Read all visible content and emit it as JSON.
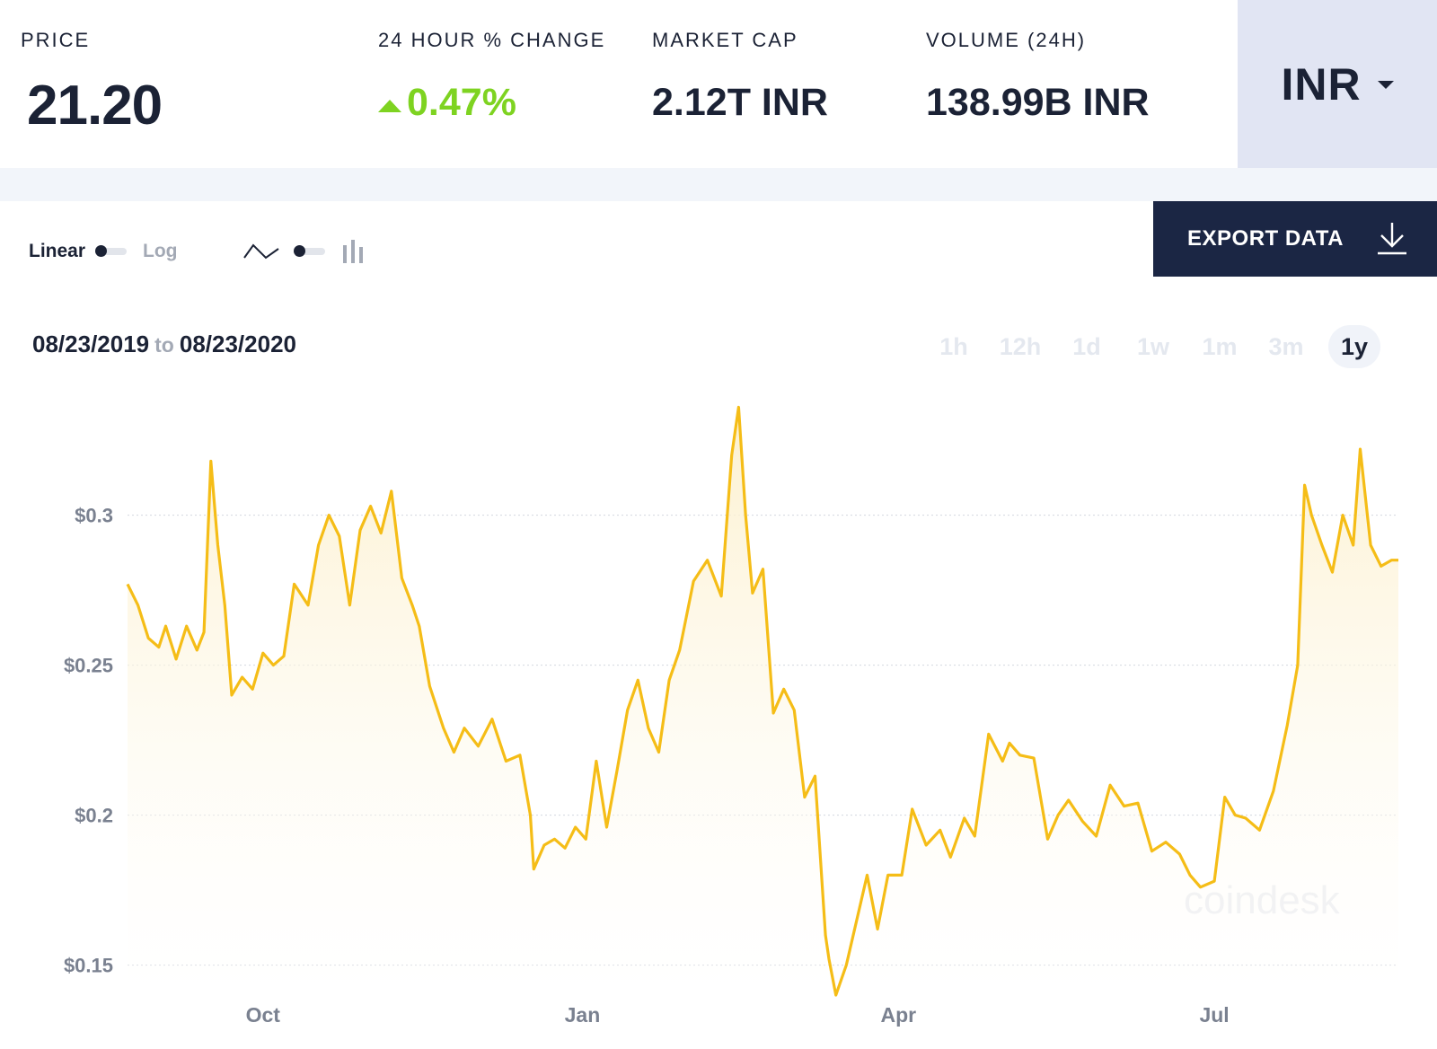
{
  "stats": {
    "price_label": "PRICE",
    "price_value": "21.20",
    "change_label": "24 HOUR % CHANGE",
    "change_value": "0.47%",
    "market_cap_label": "MARKET CAP",
    "market_cap_value": "2.12T INR",
    "volume_label": "VOLUME (24H)",
    "volume_value": "138.99B INR"
  },
  "currency": "INR",
  "toggles": {
    "linear": "Linear",
    "log": "Log"
  },
  "export": {
    "label": "EXPORT DATA"
  },
  "date_range": {
    "start": "08/23/2019",
    "to": "to",
    "end": "08/23/2020"
  },
  "ranges": [
    "1h",
    "12h",
    "1d",
    "1w",
    "1m",
    "3m",
    "1y"
  ],
  "active_range": "1y",
  "colors": {
    "accent": "#f5bd17",
    "positive": "#7ed321",
    "navy": "#1b2644"
  },
  "icons": [
    "line-chart-icon",
    "bar-chart-icon",
    "download-icon",
    "caret-down-icon"
  ],
  "chart_data": {
    "type": "area",
    "title": "",
    "xlabel": "",
    "ylabel": "",
    "y_ticks": [
      "$0.15",
      "$0.2",
      "$0.25",
      "$0.3"
    ],
    "y_tick_values": [
      0.15,
      0.2,
      0.25,
      0.3
    ],
    "x_ticks": [
      "Oct",
      "Jan",
      "Apr",
      "Jul"
    ],
    "x_tick_dates": [
      "2019-10-01",
      "2020-01-01",
      "2020-04-01",
      "2020-07-01"
    ],
    "ylim": [
      0.14,
      0.34
    ],
    "x_range": [
      "2019-08-23",
      "2020-08-23"
    ],
    "grid": true,
    "watermark": "coindesk",
    "series": [
      {
        "x": [
          "2019-08-23",
          "2019-08-26",
          "2019-08-29",
          "2019-09-01",
          "2019-09-03",
          "2019-09-06",
          "2019-09-09",
          "2019-09-12",
          "2019-09-14",
          "2019-09-16",
          "2019-09-18",
          "2019-09-20",
          "2019-09-22",
          "2019-09-25",
          "2019-09-28",
          "2019-10-01",
          "2019-10-04",
          "2019-10-07",
          "2019-10-10",
          "2019-10-14",
          "2019-10-17",
          "2019-10-20",
          "2019-10-23",
          "2019-10-26",
          "2019-10-29",
          "2019-11-01",
          "2019-11-04",
          "2019-11-07",
          "2019-11-10",
          "2019-11-13",
          "2019-11-15",
          "2019-11-18",
          "2019-11-22",
          "2019-11-25",
          "2019-11-28",
          "2019-12-02",
          "2019-12-06",
          "2019-12-10",
          "2019-12-14",
          "2019-12-17",
          "2019-12-18",
          "2019-12-21",
          "2019-12-24",
          "2019-12-27",
          "2019-12-30",
          "2020-01-02",
          "2020-01-05",
          "2020-01-08",
          "2020-01-11",
          "2020-01-14",
          "2020-01-17",
          "2020-01-20",
          "2020-01-23",
          "2020-01-26",
          "2020-01-29",
          "2020-02-02",
          "2020-02-06",
          "2020-02-10",
          "2020-02-13",
          "2020-02-15",
          "2020-02-17",
          "2020-02-19",
          "2020-02-22",
          "2020-02-25",
          "2020-02-28",
          "2020-03-02",
          "2020-03-05",
          "2020-03-08",
          "2020-03-11",
          "2020-03-12",
          "2020-03-14",
          "2020-03-17",
          "2020-03-20",
          "2020-03-23",
          "2020-03-26",
          "2020-03-29",
          "2020-04-02",
          "2020-04-05",
          "2020-04-09",
          "2020-04-13",
          "2020-04-16",
          "2020-04-20",
          "2020-04-23",
          "2020-04-27",
          "2020-05-01",
          "2020-05-03",
          "2020-05-06",
          "2020-05-10",
          "2020-05-14",
          "2020-05-17",
          "2020-05-20",
          "2020-05-24",
          "2020-05-28",
          "2020-06-01",
          "2020-06-05",
          "2020-06-09",
          "2020-06-13",
          "2020-06-17",
          "2020-06-21",
          "2020-06-24",
          "2020-06-27",
          "2020-07-01",
          "2020-07-04",
          "2020-07-07",
          "2020-07-10",
          "2020-07-14",
          "2020-07-18",
          "2020-07-22",
          "2020-07-25",
          "2020-07-27",
          "2020-07-29",
          "2020-08-01",
          "2020-08-04",
          "2020-08-07",
          "2020-08-10",
          "2020-08-12",
          "2020-08-15",
          "2020-08-18",
          "2020-08-21",
          "2020-08-23"
        ],
        "values": [
          0.277,
          0.27,
          0.259,
          0.256,
          0.263,
          0.252,
          0.263,
          0.255,
          0.261,
          0.318,
          0.29,
          0.27,
          0.24,
          0.246,
          0.242,
          0.254,
          0.25,
          0.253,
          0.277,
          0.27,
          0.29,
          0.3,
          0.293,
          0.27,
          0.295,
          0.303,
          0.294,
          0.308,
          0.279,
          0.27,
          0.263,
          0.243,
          0.229,
          0.221,
          0.229,
          0.223,
          0.232,
          0.218,
          0.22,
          0.2,
          0.182,
          0.19,
          0.192,
          0.189,
          0.196,
          0.192,
          0.218,
          0.196,
          0.215,
          0.235,
          0.245,
          0.229,
          0.221,
          0.245,
          0.255,
          0.278,
          0.285,
          0.273,
          0.32,
          0.336,
          0.3,
          0.274,
          0.282,
          0.234,
          0.242,
          0.235,
          0.206,
          0.213,
          0.16,
          0.152,
          0.14,
          0.15,
          0.165,
          0.18,
          0.162,
          0.18,
          0.18,
          0.202,
          0.19,
          0.195,
          0.186,
          0.199,
          0.193,
          0.227,
          0.218,
          0.224,
          0.22,
          0.219,
          0.192,
          0.2,
          0.205,
          0.198,
          0.193,
          0.21,
          0.203,
          0.204,
          0.188,
          0.191,
          0.187,
          0.18,
          0.176,
          0.178,
          0.206,
          0.2,
          0.199,
          0.195,
          0.208,
          0.23,
          0.25,
          0.31,
          0.3,
          0.29,
          0.281,
          0.3,
          0.29,
          0.322,
          0.29,
          0.283,
          0.285,
          0.285
        ]
      }
    ]
  }
}
